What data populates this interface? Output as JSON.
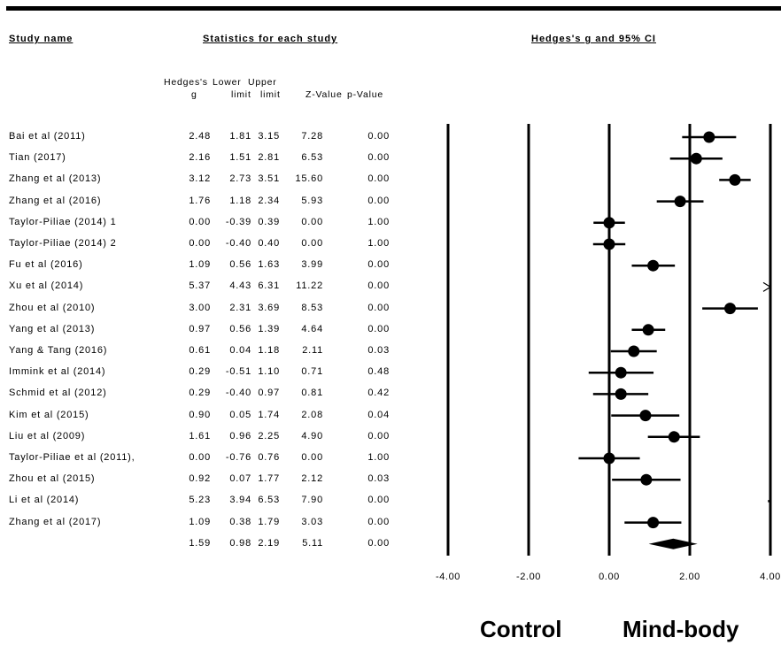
{
  "headers": {
    "study_name": "Study name",
    "statistics": "Statistics for each study",
    "plot_title": "Hedges's g and 95% CI"
  },
  "columns": {
    "hedges_line1": "Hedges's",
    "hedges_line2": "g",
    "lower_line1": "Lower",
    "lower_line2": "limit",
    "upper_line1": "Upper",
    "upper_line2": "limit",
    "zvalue": "Z-Value",
    "pvalue": "p-Value"
  },
  "rows": [
    {
      "study": "Bai et al (2011)",
      "g": "2.48",
      "lower": "1.81",
      "upper": "3.15",
      "z": "7.28",
      "p": "0.00"
    },
    {
      "study": "Tian (2017)",
      "g": "2.16",
      "lower": "1.51",
      "upper": "2.81",
      "z": "6.53",
      "p": "0.00"
    },
    {
      "study": "Zhang et al (2013)",
      "g": "3.12",
      "lower": "2.73",
      "upper": "3.51",
      "z": "15.60",
      "p": "0.00"
    },
    {
      "study": "Zhang et al (2016)",
      "g": "1.76",
      "lower": "1.18",
      "upper": "2.34",
      "z": "5.93",
      "p": "0.00"
    },
    {
      "study": "Taylor-Piliae (2014) 1",
      "g": "0.00",
      "lower": "-0.39",
      "upper": "0.39",
      "z": "0.00",
      "p": "1.00"
    },
    {
      "study": "Taylor-Piliae (2014) 2",
      "g": "0.00",
      "lower": "-0.40",
      "upper": "0.40",
      "z": "0.00",
      "p": "1.00"
    },
    {
      "study": "Fu et al (2016)",
      "g": "1.09",
      "lower": "0.56",
      "upper": "1.63",
      "z": "3.99",
      "p": "0.00"
    },
    {
      "study": "Xu et al (2014)",
      "g": "5.37",
      "lower": "4.43",
      "upper": "6.31",
      "z": "11.22",
      "p": "0.00"
    },
    {
      "study": "Zhou et al (2010)",
      "g": "3.00",
      "lower": "2.31",
      "upper": "3.69",
      "z": "8.53",
      "p": "0.00"
    },
    {
      "study": "Yang et al (2013)",
      "g": "0.97",
      "lower": "0.56",
      "upper": "1.39",
      "z": "4.64",
      "p": "0.00"
    },
    {
      "study": "Yang & Tang (2016)",
      "g": "0.61",
      "lower": "0.04",
      "upper": "1.18",
      "z": "2.11",
      "p": "0.03"
    },
    {
      "study": "Immink et al (2014)",
      "g": "0.29",
      "lower": "-0.51",
      "upper": "1.10",
      "z": "0.71",
      "p": "0.48"
    },
    {
      "study": "Schmid et al (2012)",
      "g": "0.29",
      "lower": "-0.40",
      "upper": "0.97",
      "z": "0.81",
      "p": "0.42"
    },
    {
      "study": "Kim et al (2015)",
      "g": "0.90",
      "lower": "0.05",
      "upper": "1.74",
      "z": "2.08",
      "p": "0.04"
    },
    {
      "study": "Liu et al (2009)",
      "g": "1.61",
      "lower": "0.96",
      "upper": "2.25",
      "z": "4.90",
      "p": "0.00"
    },
    {
      "study": "Taylor-Piliae et al (2011),",
      "g": "0.00",
      "lower": "-0.76",
      "upper": "0.76",
      "z": "0.00",
      "p": "1.00"
    },
    {
      "study": "Zhou et al (2015)",
      "g": "0.92",
      "lower": "0.07",
      "upper": "1.77",
      "z": "2.12",
      "p": "0.03"
    },
    {
      "study": "Li et al (2014)",
      "g": "5.23",
      "lower": "3.94",
      "upper": "6.53",
      "z": "7.90",
      "p": "0.00"
    },
    {
      "study": "Zhang et al (2017)",
      "g": "1.09",
      "lower": "0.38",
      "upper": "1.79",
      "z": "3.03",
      "p": "0.00"
    }
  ],
  "summary": {
    "study": "",
    "g": "1.59",
    "lower": "0.98",
    "upper": "2.19",
    "z": "5.11",
    "p": "0.00"
  },
  "labels": {
    "left_favours": "Control",
    "right_favours": "Mind-body"
  },
  "chart_data": {
    "type": "forest",
    "title": "Hedges's g and 95% CI",
    "xlim": [
      -4,
      4
    ],
    "xticks": [
      "-4.00",
      "-2.00",
      "0.00",
      "2.00",
      "4.00"
    ],
    "xtick_values": [
      -4,
      -2,
      0,
      2,
      4
    ],
    "vertical_lines": [
      -4,
      -2,
      0,
      2,
      4
    ],
    "series": [
      {
        "g": 2.48,
        "lower": 1.81,
        "upper": 3.15
      },
      {
        "g": 2.16,
        "lower": 1.51,
        "upper": 2.81
      },
      {
        "g": 3.12,
        "lower": 2.73,
        "upper": 3.51
      },
      {
        "g": 1.76,
        "lower": 1.18,
        "upper": 2.34
      },
      {
        "g": 0.0,
        "lower": -0.39,
        "upper": 0.39
      },
      {
        "g": 0.0,
        "lower": -0.4,
        "upper": 0.4
      },
      {
        "g": 1.09,
        "lower": 0.56,
        "upper": 1.63
      },
      {
        "g": 5.37,
        "lower": 4.43,
        "upper": 6.31
      },
      {
        "g": 3.0,
        "lower": 2.31,
        "upper": 3.69
      },
      {
        "g": 0.97,
        "lower": 0.56,
        "upper": 1.39
      },
      {
        "g": 0.61,
        "lower": 0.04,
        "upper": 1.18
      },
      {
        "g": 0.29,
        "lower": -0.51,
        "upper": 1.1
      },
      {
        "g": 0.29,
        "lower": -0.4,
        "upper": 0.97
      },
      {
        "g": 0.9,
        "lower": 0.05,
        "upper": 1.74
      },
      {
        "g": 1.61,
        "lower": 0.96,
        "upper": 2.25
      },
      {
        "g": 0.0,
        "lower": -0.76,
        "upper": 0.76
      },
      {
        "g": 0.92,
        "lower": 0.07,
        "upper": 1.77
      },
      {
        "g": 5.23,
        "lower": 3.94,
        "upper": 6.53
      },
      {
        "g": 1.09,
        "lower": 0.38,
        "upper": 1.79
      }
    ],
    "summary": {
      "g": 1.59,
      "lower": 0.98,
      "upper": 2.19
    }
  }
}
